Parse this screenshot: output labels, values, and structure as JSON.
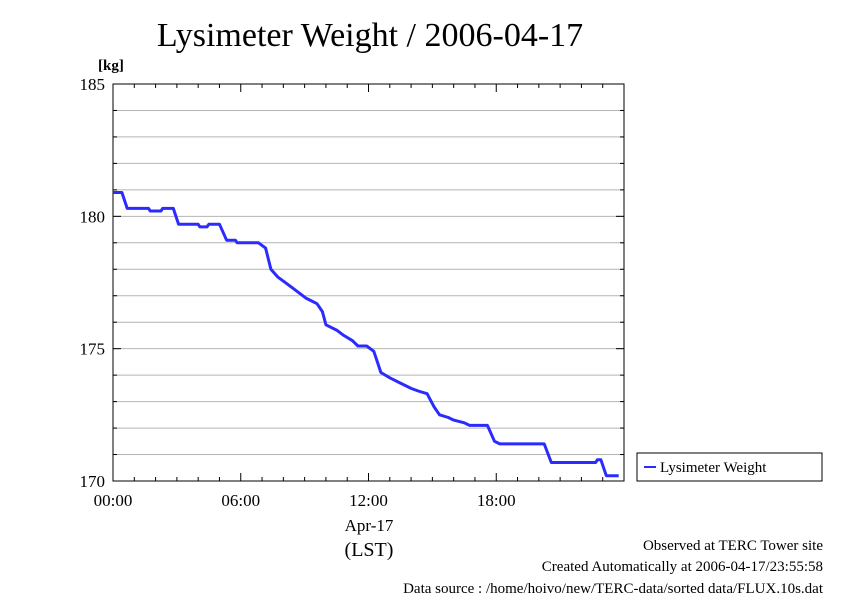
{
  "chart_data": {
    "type": "line",
    "title": "Lysimeter Weight / 2006-04-17",
    "ylabel": "[kg]",
    "xlabel": "(LST)",
    "date_label": "Apr-17",
    "ylim": [
      170,
      185
    ],
    "y_ticks": [
      "170",
      "175",
      "180",
      "185"
    ],
    "xlim": [
      "00:00",
      "24:00"
    ],
    "x_ticks": [
      "00:00",
      "06:00",
      "12:00",
      "18:00"
    ],
    "grid": true,
    "legend_position": "right-bottom",
    "series": [
      {
        "name": "Lysimeter Weight",
        "color": "#2b2bff",
        "points": [
          [
            "00:00",
            180.9
          ],
          [
            "00:25",
            180.9
          ],
          [
            "00:40",
            180.3
          ],
          [
            "01:40",
            180.3
          ],
          [
            "01:45",
            180.2
          ],
          [
            "02:15",
            180.2
          ],
          [
            "02:20",
            180.3
          ],
          [
            "02:50",
            180.3
          ],
          [
            "03:05",
            179.7
          ],
          [
            "04:00",
            179.7
          ],
          [
            "04:05",
            179.6
          ],
          [
            "04:25",
            179.6
          ],
          [
            "04:30",
            179.7
          ],
          [
            "05:00",
            179.7
          ],
          [
            "05:20",
            179.1
          ],
          [
            "05:45",
            179.1
          ],
          [
            "05:50",
            179.0
          ],
          [
            "06:50",
            179.0
          ],
          [
            "07:00",
            178.9
          ],
          [
            "07:10",
            178.8
          ],
          [
            "07:25",
            178.0
          ],
          [
            "07:45",
            177.7
          ],
          [
            "08:15",
            177.4
          ],
          [
            "08:45",
            177.1
          ],
          [
            "09:05",
            176.9
          ],
          [
            "09:20",
            176.8
          ],
          [
            "09:35",
            176.7
          ],
          [
            "09:50",
            176.4
          ],
          [
            "10:00",
            175.9
          ],
          [
            "10:30",
            175.7
          ],
          [
            "10:50",
            175.5
          ],
          [
            "11:15",
            175.3
          ],
          [
            "11:30",
            175.1
          ],
          [
            "11:55",
            175.1
          ],
          [
            "12:15",
            174.9
          ],
          [
            "12:35",
            174.1
          ],
          [
            "13:00",
            173.9
          ],
          [
            "13:30",
            173.7
          ],
          [
            "14:00",
            173.5
          ],
          [
            "14:20",
            173.4
          ],
          [
            "14:45",
            173.3
          ],
          [
            "15:05",
            172.8
          ],
          [
            "15:20",
            172.5
          ],
          [
            "15:45",
            172.4
          ],
          [
            "16:00",
            172.3
          ],
          [
            "16:30",
            172.2
          ],
          [
            "16:45",
            172.1
          ],
          [
            "17:35",
            172.1
          ],
          [
            "17:55",
            171.5
          ],
          [
            "18:10",
            171.4
          ],
          [
            "20:15",
            171.4
          ],
          [
            "20:35",
            170.7
          ],
          [
            "22:40",
            170.7
          ],
          [
            "22:45",
            170.8
          ],
          [
            "22:55",
            170.8
          ],
          [
            "23:10",
            170.2
          ],
          [
            "23:45",
            170.2
          ]
        ]
      }
    ]
  },
  "footer": {
    "line1": "Observed at TERC Tower site",
    "line2": "Created Automatically at 2006-04-17/23:55:58",
    "line3": "Data source : /home/hoivo/new/TERC-data/sorted  data/FLUX.10s.dat"
  }
}
